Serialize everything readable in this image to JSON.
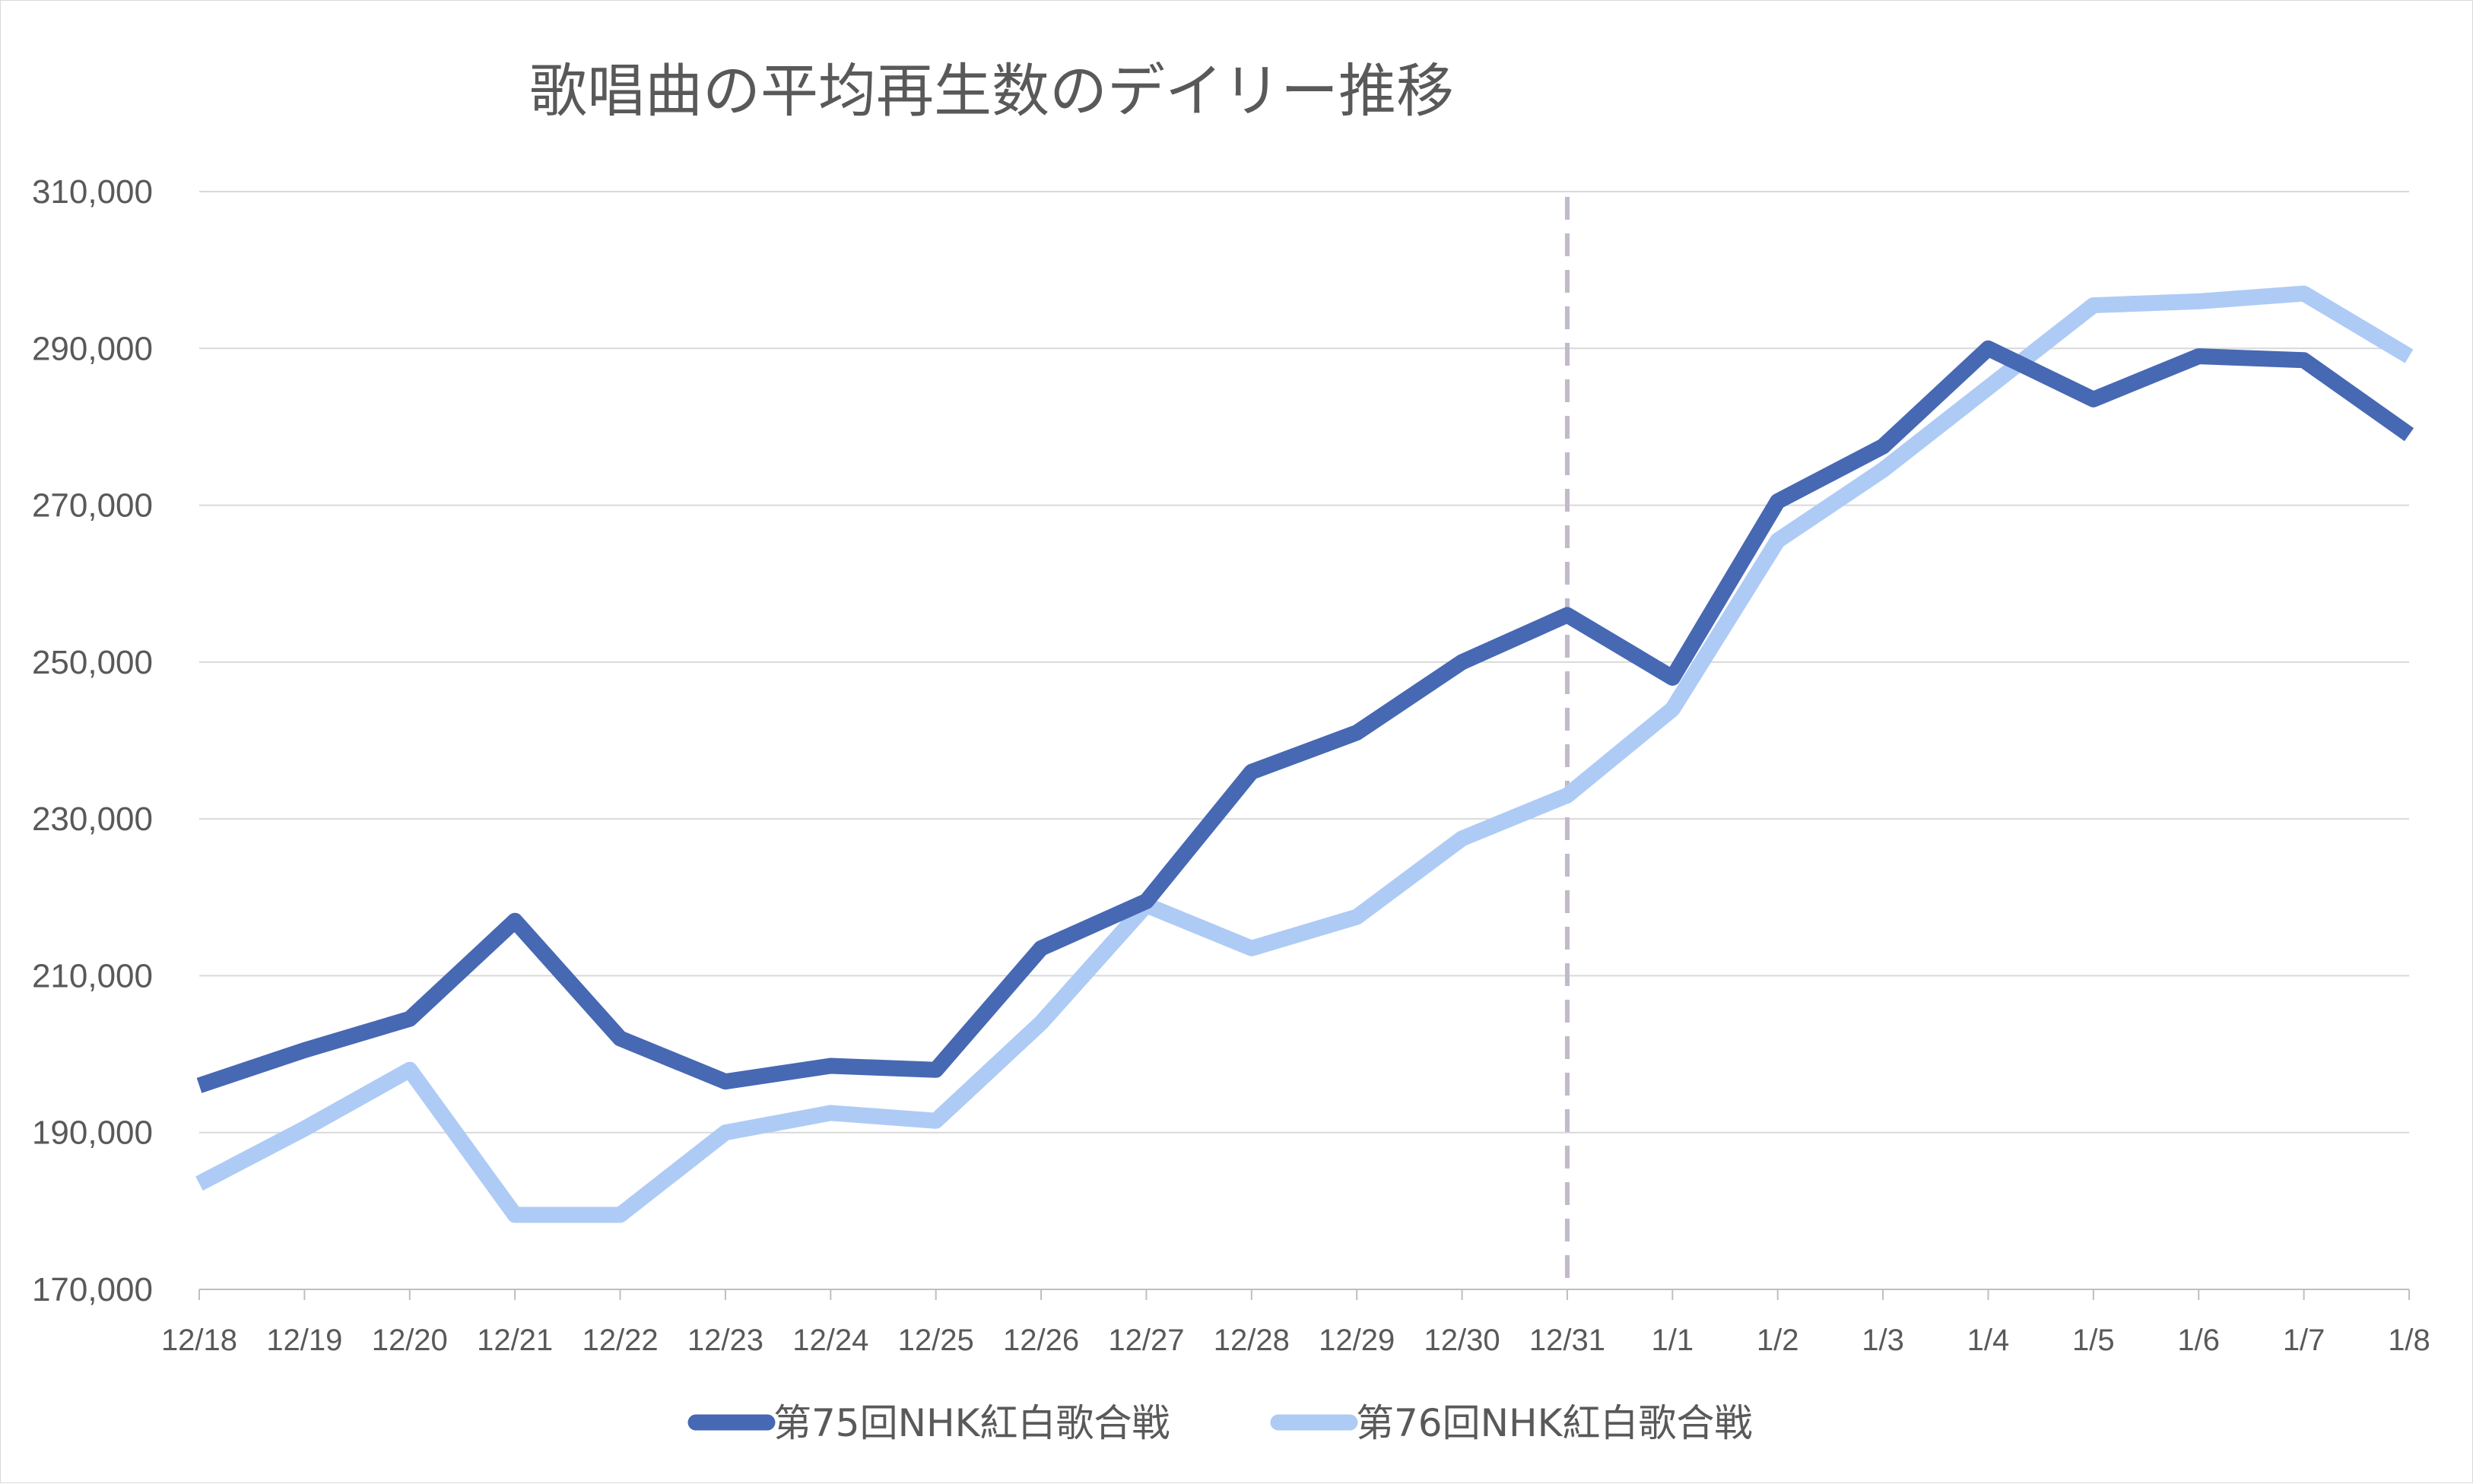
{
  "chart_data": {
    "type": "line",
    "title": "歌唱曲の平均再生数のデイリー推移",
    "xlabel": "",
    "ylabel": "",
    "ylim": [
      170000,
      310000
    ],
    "yticks": [
      170000,
      190000,
      210000,
      230000,
      250000,
      270000,
      290000,
      310000
    ],
    "ytick_labels": [
      "170,000",
      "190,000",
      "210,000",
      "230,000",
      "250,000",
      "270,000",
      "290,000",
      "310,000"
    ],
    "categories": [
      "12/18",
      "12/19",
      "12/20",
      "12/21",
      "12/22",
      "12/23",
      "12/24",
      "12/25",
      "12/26",
      "12/27",
      "12/28",
      "12/29",
      "12/30",
      "12/31",
      "1/1",
      "1/2",
      "1/3",
      "1/4",
      "1/5",
      "1/6",
      "1/7",
      "1/8"
    ],
    "series": [
      {
        "name": "第75回NHK紅白歌合戦",
        "color": "#4768b3",
        "values": [
          196000,
          200500,
          204500,
          217000,
          202000,
          196500,
          198500,
          198000,
          213500,
          219500,
          236000,
          241000,
          250000,
          256000,
          248000,
          270500,
          277500,
          290000,
          283500,
          289000,
          288500,
          279000
        ]
      },
      {
        "name": "第76回NHK紅白歌合戦",
        "color": "#aecbf5",
        "values": [
          183500,
          190500,
          198000,
          179500,
          179500,
          190000,
          192500,
          191500,
          204000,
          219000,
          213500,
          217500,
          227500,
          233000,
          244000,
          265500,
          274500,
          285000,
          295500,
          296000,
          297000,
          289000
        ]
      }
    ],
    "reference_line": {
      "category": "12/31",
      "style": "dashed",
      "color": "#c4b8cb"
    },
    "grid": true,
    "legend": "bottom"
  }
}
